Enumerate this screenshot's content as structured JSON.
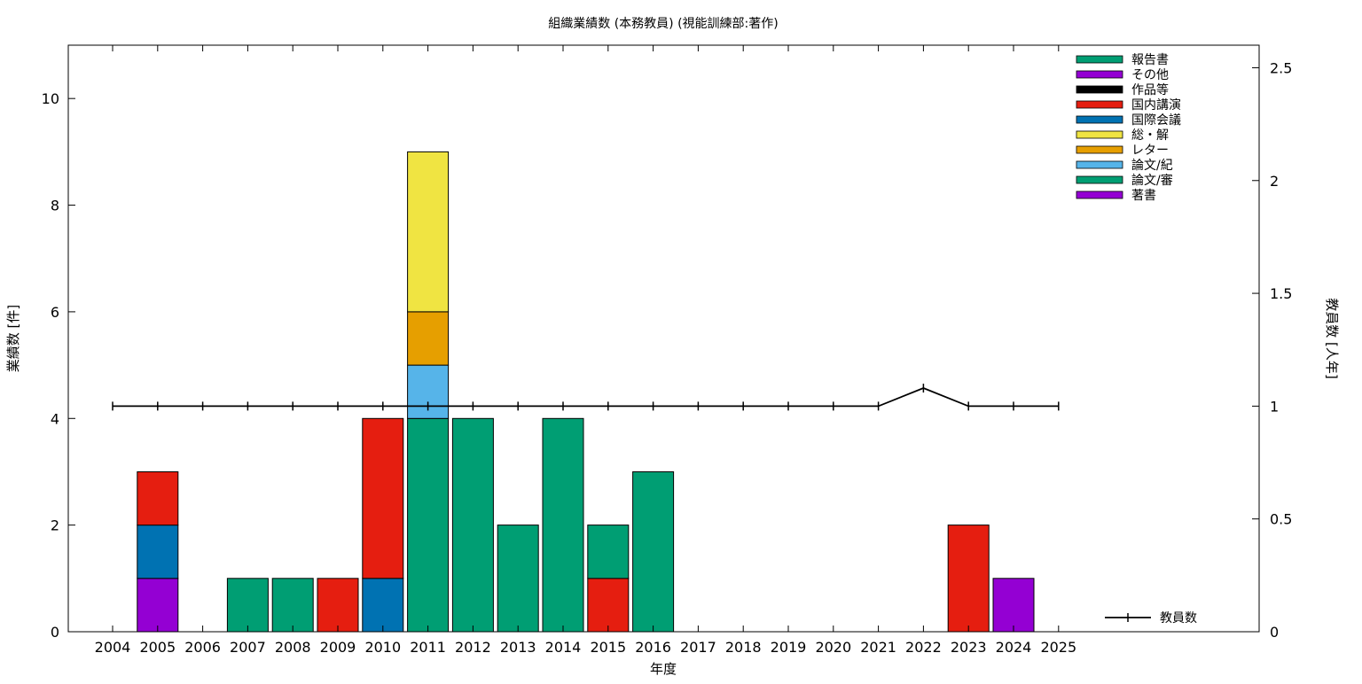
{
  "chart_data": {
    "type": "bar",
    "title": "組織業績数 (本務教員) (視能訓練部:著作)",
    "xlabel": "年度",
    "ylabel": "業績数 [件]",
    "y2label": "教員数 [人年]",
    "categories": [
      "2004",
      "2005",
      "2006",
      "2007",
      "2008",
      "2009",
      "2010",
      "2011",
      "2012",
      "2013",
      "2014",
      "2015",
      "2016",
      "2017",
      "2018",
      "2019",
      "2020",
      "2021",
      "2022",
      "2023",
      "2024",
      "2025"
    ],
    "ylim": [
      0,
      11
    ],
    "y2lim": [
      0,
      2.6
    ],
    "yticks": [
      0,
      2,
      4,
      6,
      8,
      10
    ],
    "y2ticks": [
      {
        "value": 0,
        "label": "0"
      },
      {
        "value": 0.5,
        "label": "0.5"
      },
      {
        "value": 1,
        "label": "1"
      },
      {
        "value": 1.5,
        "label": "1.5"
      },
      {
        "value": 2,
        "label": "2"
      },
      {
        "value": 2.5,
        "label": "2.5"
      }
    ],
    "grid": false,
    "legend_position": "top-right",
    "stack_order": [
      "著書",
      "論文/審",
      "論文/紀",
      "レター",
      "総・解",
      "国際会議",
      "国内講演",
      "作品等",
      "その他",
      "報告書"
    ],
    "legend_order": [
      "報告書",
      "その他",
      "作品等",
      "国内講演",
      "国際会議",
      "総・解",
      "レター",
      "論文/紀",
      "論文/審",
      "著書"
    ],
    "series": [
      {
        "name": "著書",
        "color": "#9400d3",
        "values": [
          0,
          1,
          0,
          0,
          0,
          0,
          0,
          0,
          0,
          0,
          0,
          0,
          0,
          0,
          0,
          0,
          0,
          0,
          0,
          0,
          1,
          0
        ]
      },
      {
        "name": "論文/審",
        "color": "#009e73",
        "values": [
          0,
          0,
          0,
          0,
          0,
          0,
          0,
          4,
          0,
          0,
          0,
          0,
          0,
          0,
          0,
          0,
          0,
          0,
          0,
          0,
          0,
          0
        ]
      },
      {
        "name": "論文/紀",
        "color": "#56b4e9",
        "values": [
          0,
          0,
          0,
          0,
          0,
          0,
          0,
          1,
          0,
          0,
          0,
          0,
          0,
          0,
          0,
          0,
          0,
          0,
          0,
          0,
          0,
          0
        ]
      },
      {
        "name": "レター",
        "color": "#e69f00",
        "values": [
          0,
          0,
          0,
          0,
          0,
          0,
          0,
          1,
          0,
          0,
          0,
          0,
          0,
          0,
          0,
          0,
          0,
          0,
          0,
          0,
          0,
          0
        ]
      },
      {
        "name": "総・解",
        "color": "#f0e442",
        "values": [
          0,
          0,
          0,
          0,
          0,
          0,
          0,
          3,
          0,
          0,
          0,
          0,
          0,
          0,
          0,
          0,
          0,
          0,
          0,
          0,
          0,
          0
        ]
      },
      {
        "name": "国際会議",
        "color": "#0072b2",
        "values": [
          0,
          1,
          0,
          0,
          0,
          0,
          1,
          0,
          0,
          0,
          0,
          0,
          0,
          0,
          0,
          0,
          0,
          0,
          0,
          0,
          0,
          0
        ]
      },
      {
        "name": "国内講演",
        "color": "#e51e10",
        "values": [
          0,
          1,
          0,
          0,
          0,
          1,
          3,
          0,
          0,
          0,
          0,
          1,
          0,
          0,
          0,
          0,
          0,
          0,
          0,
          2,
          0,
          0
        ]
      },
      {
        "name": "作品等",
        "color": "#000000",
        "values": [
          0,
          0,
          0,
          0,
          0,
          0,
          0,
          0,
          0,
          0,
          0,
          0,
          0,
          0,
          0,
          0,
          0,
          0,
          0,
          0,
          0,
          0
        ]
      },
      {
        "name": "その他",
        "color": "#9400d3",
        "values": [
          0,
          0,
          0,
          0,
          0,
          0,
          0,
          0,
          0,
          0,
          0,
          0,
          0,
          0,
          0,
          0,
          0,
          0,
          0,
          0,
          0,
          0
        ]
      },
      {
        "name": "報告書",
        "color": "#009e73",
        "values": [
          0,
          0,
          0,
          1,
          1,
          0,
          0,
          0,
          4,
          2,
          4,
          1,
          3,
          0,
          0,
          0,
          0,
          0,
          0,
          0,
          0,
          0
        ]
      }
    ],
    "line_series": {
      "name": "教員数",
      "color": "#000000",
      "axis": "y2",
      "values": [
        1,
        1,
        1,
        1,
        1,
        1,
        1,
        1,
        1,
        1,
        1,
        1,
        1,
        1,
        1,
        1,
        1,
        1,
        1.08,
        1,
        1,
        1
      ]
    }
  }
}
